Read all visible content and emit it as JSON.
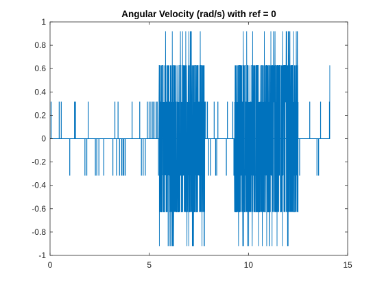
{
  "chart_data": {
    "type": "line",
    "title": "Angular Velocity (rad/s) with ref = 0",
    "xlabel": "",
    "ylabel": "",
    "xlim": [
      0,
      15
    ],
    "ylim": [
      -1,
      1
    ],
    "xticks": [
      0,
      5,
      10,
      15
    ],
    "xtick_labels": [
      "0",
      "5",
      "10",
      "15"
    ],
    "yticks": [
      -1,
      -0.8,
      -0.6,
      -0.4,
      -0.2,
      0,
      0.2,
      0.4,
      0.6,
      0.8,
      1
    ],
    "ytick_labels": [
      "-1",
      "-0.8",
      "-0.6",
      "-0.4",
      "-0.2",
      "0",
      "0.2",
      "0.4",
      "0.6",
      "0.8",
      "1"
    ],
    "grid": false,
    "box": true,
    "line_color": "#0072BD",
    "level_values": [
      0.314,
      0.628,
      0.92
    ],
    "series": [
      {
        "envelope_segments": [
          {
            "x_start": 0.0,
            "x_end": 2.2,
            "max_abs": 0.314
          },
          {
            "x_start": 2.2,
            "x_end": 5.0,
            "max_abs": 0.314
          },
          {
            "x_start": 5.0,
            "x_end": 5.5,
            "max_abs": 0.314
          },
          {
            "x_start": 5.5,
            "x_end": 7.8,
            "max_abs": 0.92
          },
          {
            "x_start": 7.8,
            "x_end": 9.3,
            "max_abs": 0.314
          },
          {
            "x_start": 9.3,
            "x_end": 12.5,
            "max_abs": 0.92
          },
          {
            "x_start": 12.5,
            "x_end": 14.1,
            "max_abs": 0.314
          }
        ],
        "end_x": 14.1,
        "end_y": 0.628
      }
    ]
  }
}
